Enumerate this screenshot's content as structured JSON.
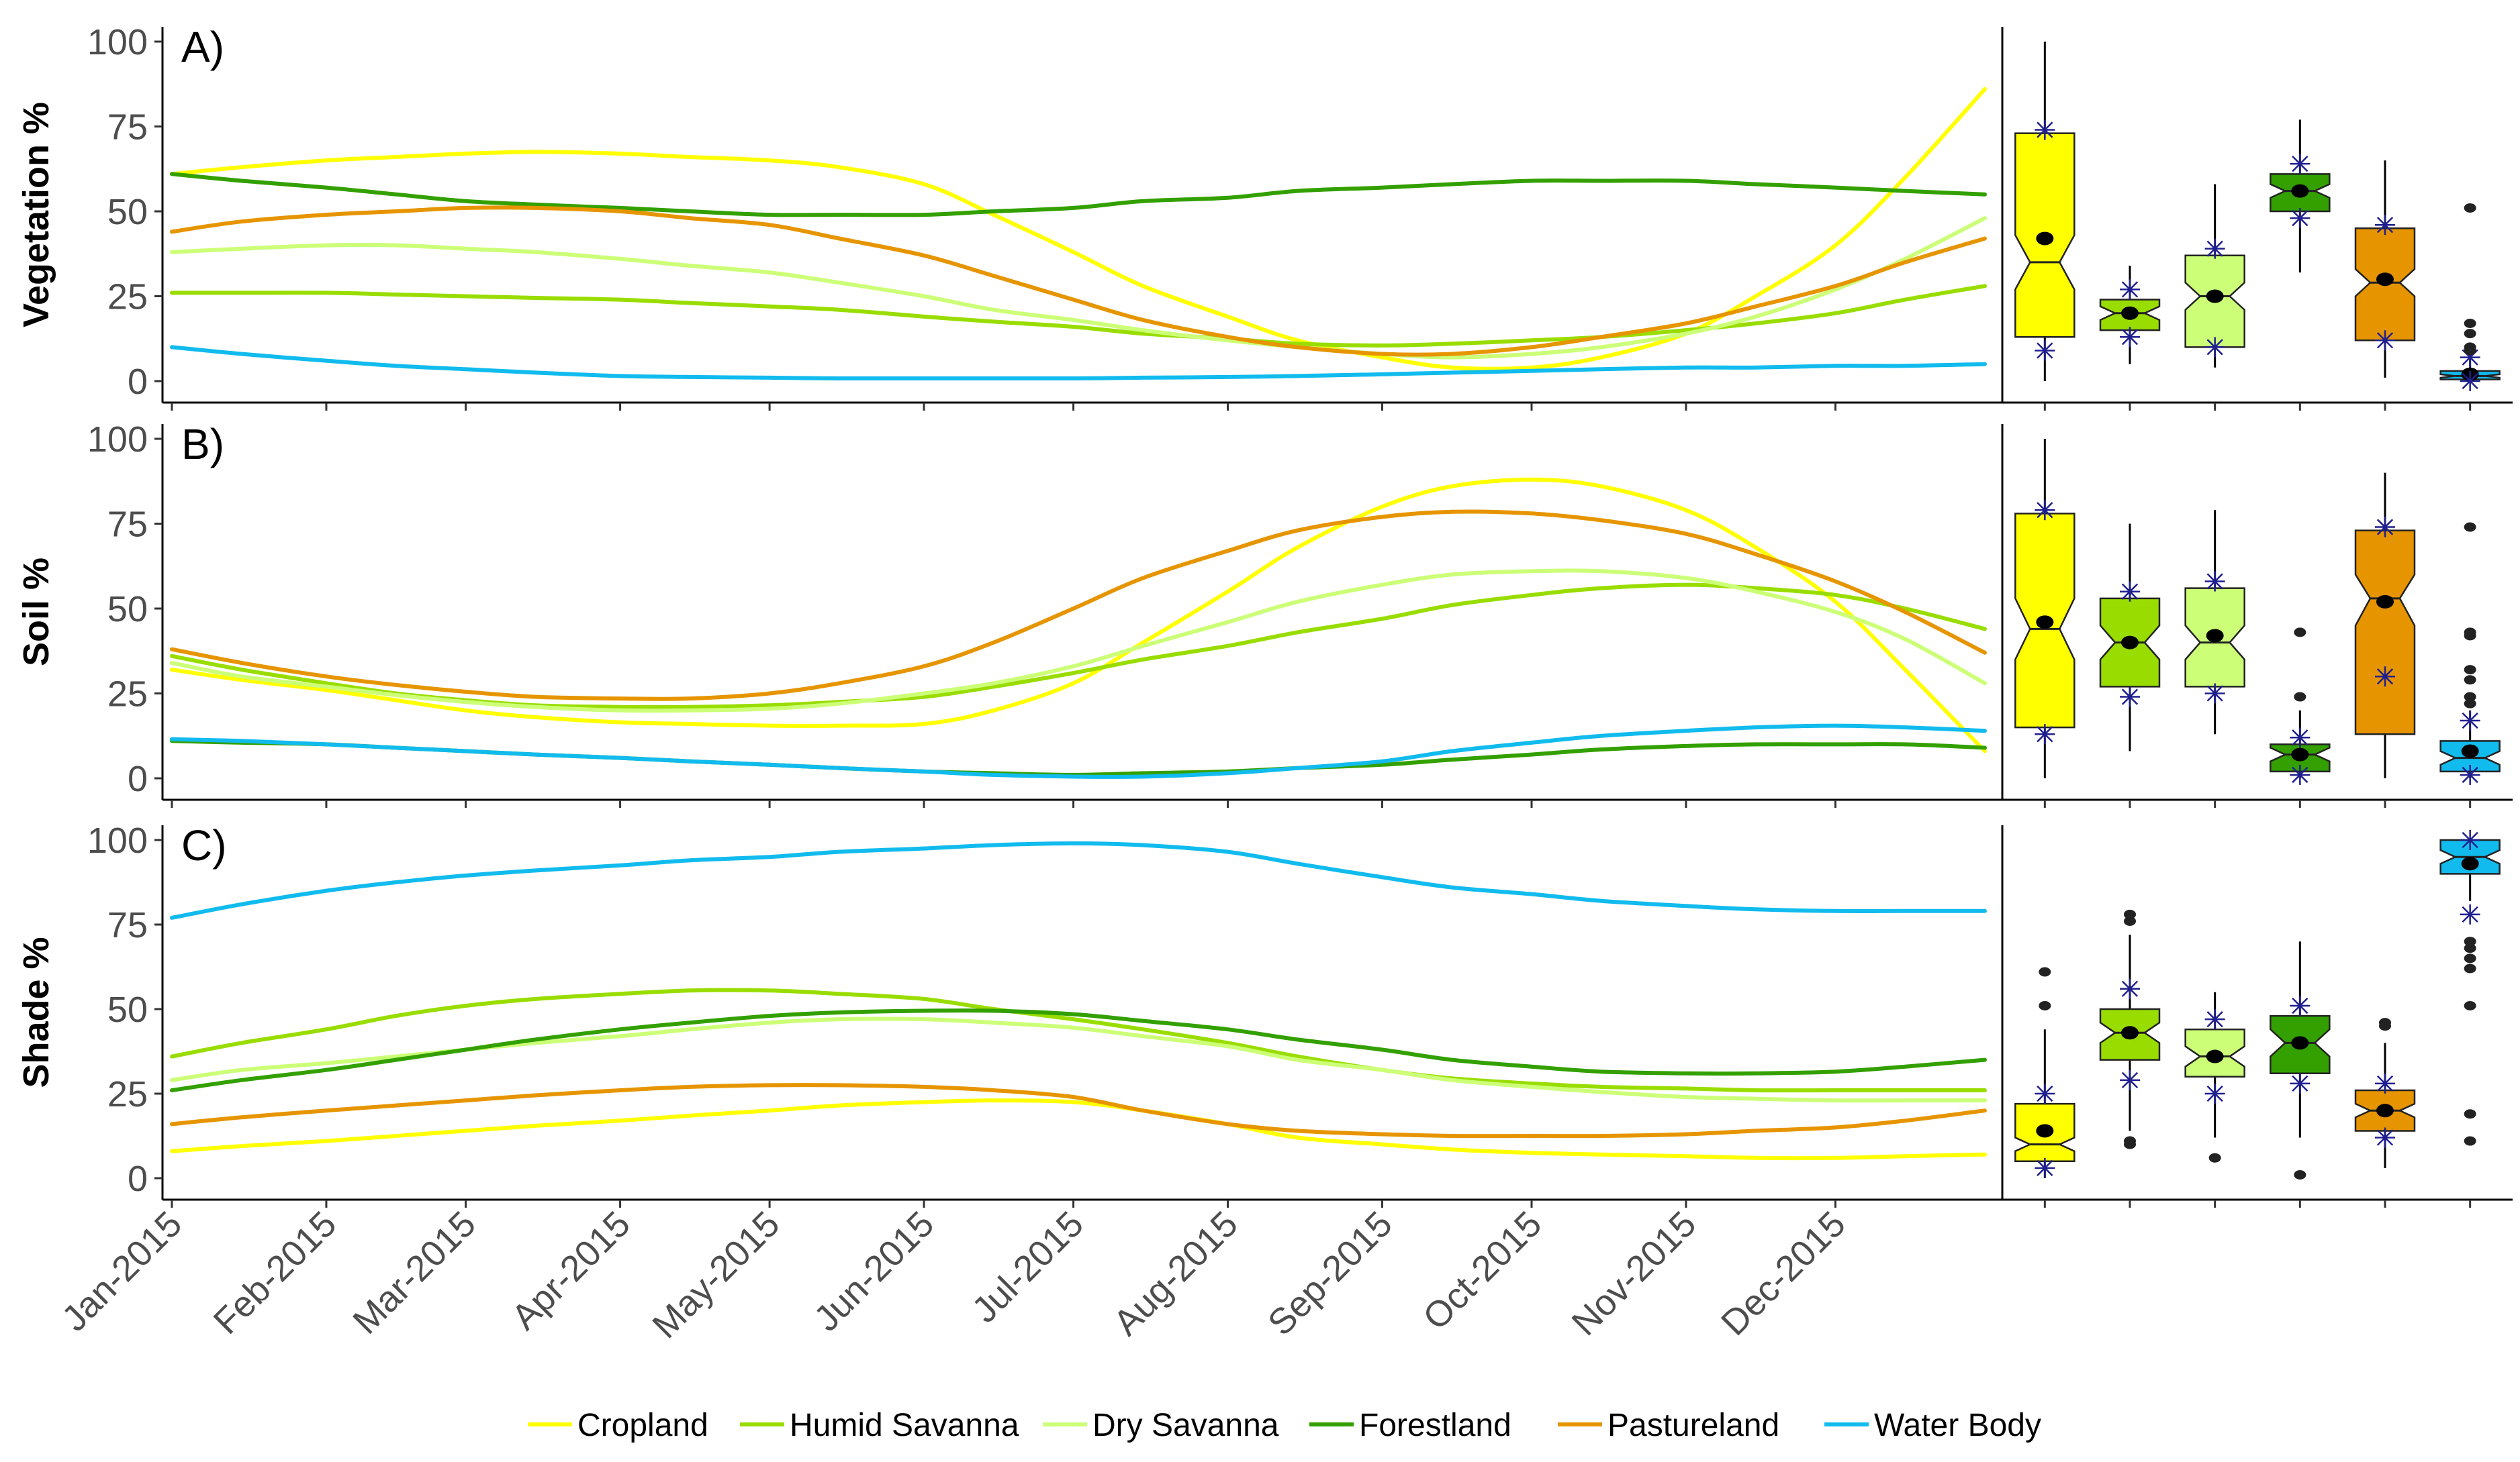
{
  "chart_data": {
    "type": "line",
    "legend": {
      "position": "bottom",
      "entries": [
        "Cropland",
        "Humid Savanna",
        "Dry Savanna",
        "Forestland",
        "Pastureland",
        "Water Body"
      ]
    },
    "colors": {
      "Cropland": "#ffff00",
      "Humid Savanna": "#99dd00",
      "Dry Savanna": "#ccff77",
      "Forestland": "#33a000",
      "Pastureland": "#e69500",
      "Water Body": "#11bbee"
    },
    "x": [
      "2015-01-01",
      "2015-01-15",
      "2015-02-01",
      "2015-02-15",
      "2015-03-01",
      "2015-03-15",
      "2015-04-01",
      "2015-04-15",
      "2015-05-01",
      "2015-05-15",
      "2015-06-01",
      "2015-06-15",
      "2015-07-01",
      "2015-07-15",
      "2015-08-01",
      "2015-08-15",
      "2015-09-01",
      "2015-09-15",
      "2015-10-01",
      "2015-10-15",
      "2015-11-01",
      "2015-11-15",
      "2015-12-01",
      "2015-12-15",
      "2015-12-31"
    ],
    "xlim": [
      "2015-01-01",
      "2015-12-31"
    ],
    "x_tick_labels": [
      "Jan-2015",
      "Feb-2015",
      "Mar-2015",
      "Apr-2015",
      "May-2015",
      "Jun-2015",
      "Jul-2015",
      "Aug-2015",
      "Sep-2015",
      "Oct-2015",
      "Nov-2015",
      "Dec-2015"
    ],
    "ylim": [
      0,
      100
    ],
    "y_ticks": [
      0,
      25,
      50,
      75,
      100
    ],
    "box_whisker_marker": "asterisk",
    "panels": [
      {
        "tag": "A)",
        "ylabel": "Vegetation %",
        "series": [
          {
            "name": "Cropland",
            "values": [
              61,
              63,
              65,
              66,
              67,
              67.5,
              67,
              66,
              65,
              63,
              58,
              49,
              38,
              28,
              19,
              12,
              7,
              4,
              4,
              7,
              14,
              25,
              40,
              60,
              86
            ]
          },
          {
            "name": "Humid Savanna",
            "values": [
              26,
              26,
              26,
              25.5,
              25,
              24.5,
              24,
              23,
              22,
              21,
              19,
              17.5,
              16,
              14,
              12.5,
              11,
              10.5,
              11,
              12,
              13,
              15,
              17,
              20,
              24,
              28
            ]
          },
          {
            "name": "Dry Savanna",
            "values": [
              38,
              39,
              40,
              40,
              39,
              38,
              36,
              34,
              32,
              29,
              25,
              21,
              18,
              15,
              12,
              10,
              8,
              7,
              8,
              10,
              14,
              19,
              27,
              36,
              48
            ]
          },
          {
            "name": "Forestland",
            "values": [
              61,
              59,
              57,
              55,
              53,
              52,
              51,
              50,
              49,
              49,
              49,
              50,
              51,
              53,
              54,
              56,
              57,
              58,
              59,
              59,
              59,
              58,
              57,
              56,
              55
            ]
          },
          {
            "name": "Pastureland",
            "values": [
              44,
              47,
              49,
              50,
              51,
              51,
              50,
              48,
              46,
              42,
              37,
              31,
              24,
              18,
              13,
              10,
              8,
              8,
              10,
              13,
              17,
              22,
              28,
              35,
              42
            ]
          },
          {
            "name": "Water Body",
            "values": [
              10,
              8,
              6,
              4.5,
              3.5,
              2.5,
              1.5,
              1.2,
              1,
              0.8,
              0.8,
              0.8,
              0.8,
              1,
              1.2,
              1.5,
              2,
              2.5,
              3,
              3.5,
              4,
              4,
              4.5,
              4.5,
              5
            ]
          }
        ],
        "boxes": [
          {
            "name": "Cropland",
            "q1": 13,
            "median": 35,
            "q3": 73,
            "lower_whisker": 0,
            "upper_whisker": 100,
            "mean": 42,
            "sd_low": 9,
            "sd_high": 74,
            "notch": [
              27,
              43
            ],
            "outliers": []
          },
          {
            "name": "Humid Savanna",
            "q1": 15,
            "median": 20,
            "q3": 24,
            "lower_whisker": 5,
            "upper_whisker": 34,
            "mean": 20,
            "sd_low": 13,
            "sd_high": 27,
            "notch": [
              18,
              22
            ],
            "outliers": []
          },
          {
            "name": "Dry Savanna",
            "q1": 10,
            "median": 25,
            "q3": 37,
            "lower_whisker": 4,
            "upper_whisker": 58,
            "mean": 25,
            "sd_low": 10,
            "sd_high": 39,
            "notch": [
              21,
              29
            ],
            "outliers": []
          },
          {
            "name": "Forestland",
            "q1": 50,
            "median": 56,
            "q3": 61,
            "lower_whisker": 32,
            "upper_whisker": 77,
            "mean": 56,
            "sd_low": 48,
            "sd_high": 64,
            "notch": [
              54,
              58
            ],
            "outliers": []
          },
          {
            "name": "Pastureland",
            "q1": 12,
            "median": 29,
            "q3": 45,
            "lower_whisker": 1,
            "upper_whisker": 65,
            "mean": 30,
            "sd_low": 12,
            "sd_high": 46,
            "notch": [
              25,
              33
            ],
            "outliers": []
          },
          {
            "name": "Water Body",
            "q1": 0.5,
            "median": 1.5,
            "q3": 3,
            "lower_whisker": 0,
            "upper_whisker": 7,
            "mean": 2,
            "sd_low": 0,
            "sd_high": 7,
            "notch": [
              1,
              2
            ],
            "outliers": [
              9,
              10,
              14,
              17,
              51
            ]
          }
        ]
      },
      {
        "tag": "B)",
        "ylabel": "Soil %",
        "series": [
          {
            "name": "Cropland",
            "values": [
              32,
              29,
              26,
              23,
              20,
              18,
              16.5,
              16,
              15.5,
              15.5,
              16,
              20,
              28,
              40,
              55,
              68,
              80,
              86,
              88,
              86,
              79,
              68,
              52,
              32,
              8
            ]
          },
          {
            "name": "Humid Savanna",
            "values": [
              36,
              32,
              28,
              25,
              23,
              21.5,
              21,
              21,
              21.5,
              22.5,
              24,
              27,
              31,
              35,
              39,
              43,
              47,
              51,
              54,
              56,
              57,
              56,
              54,
              50,
              44
            ]
          },
          {
            "name": "Dry Savanna",
            "values": [
              34,
              30,
              27,
              24.5,
              22.5,
              21,
              20,
              20,
              20.5,
              22,
              25,
              28,
              33,
              39,
              46,
              52,
              57,
              60,
              61,
              61,
              59,
              55,
              49,
              41,
              28
            ]
          },
          {
            "name": "Forestland",
            "values": [
              11,
              10.5,
              10,
              9,
              8,
              7,
              6,
              5,
              4,
              3,
              2,
              1.5,
              1,
              1.5,
              2,
              3,
              4,
              5.5,
              7,
              8.5,
              9.5,
              10,
              10,
              10,
              9
            ]
          },
          {
            "name": "Pastureland",
            "values": [
              38,
              34,
              30,
              27.5,
              25.5,
              24,
              23.5,
              23.5,
              25,
              28,
              33,
              40,
              50,
              59,
              67,
              73,
              77,
              78.5,
              78,
              76,
              72,
              66,
              58,
              49,
              37
            ]
          },
          {
            "name": "Water Body",
            "values": [
              11.5,
              11,
              10,
              9,
              8,
              7,
              6,
              5,
              4,
              3,
              2,
              1,
              0.5,
              0.5,
              1.5,
              3,
              5,
              8,
              10.5,
              12.5,
              14,
              15,
              15.5,
              15,
              14
            ]
          }
        ],
        "boxes": [
          {
            "name": "Cropland",
            "q1": 15,
            "median": 44,
            "q3": 78,
            "lower_whisker": 0,
            "upper_whisker": 100,
            "mean": 46,
            "sd_low": 13,
            "sd_high": 79,
            "notch": [
              35,
              53
            ],
            "outliers": []
          },
          {
            "name": "Humid Savanna",
            "q1": 27,
            "median": 40,
            "q3": 53,
            "lower_whisker": 8,
            "upper_whisker": 75,
            "mean": 40,
            "sd_low": 24,
            "sd_high": 55,
            "notch": [
              35,
              45
            ],
            "outliers": []
          },
          {
            "name": "Dry Savanna",
            "q1": 27,
            "median": 40,
            "q3": 56,
            "lower_whisker": 13,
            "upper_whisker": 79,
            "mean": 42,
            "sd_low": 25,
            "sd_high": 58,
            "notch": [
              35,
              45
            ],
            "outliers": []
          },
          {
            "name": "Forestland",
            "q1": 2,
            "median": 7,
            "q3": 10,
            "lower_whisker": 0,
            "upper_whisker": 20,
            "mean": 7,
            "sd_low": 1,
            "sd_high": 12,
            "notch": [
              5,
              9
            ],
            "outliers": [
              24,
              43
            ]
          },
          {
            "name": "Pastureland",
            "q1": 13,
            "median": 53,
            "q3": 73,
            "lower_whisker": 0,
            "upper_whisker": 90,
            "mean": 52,
            "sd_low": 30,
            "sd_high": 74,
            "notch": [
              45,
              60
            ],
            "outliers": []
          },
          {
            "name": "Water Body",
            "q1": 2,
            "median": 6,
            "q3": 11,
            "lower_whisker": 0,
            "upper_whisker": 20,
            "mean": 8,
            "sd_low": 1,
            "sd_high": 17,
            "notch": [
              4,
              8
            ],
            "outliers": [
              22,
              24,
              29,
              32,
              42,
              43,
              74
            ]
          }
        ]
      },
      {
        "tag": "C)",
        "ylabel": "Shade %",
        "series": [
          {
            "name": "Cropland",
            "values": [
              8,
              9.5,
              11,
              12.5,
              14,
              15.5,
              17,
              18.5,
              20,
              21.5,
              22.5,
              23,
              22.5,
              20,
              16,
              12,
              10,
              8.5,
              7.5,
              7,
              6.5,
              6,
              6,
              6.5,
              7
            ]
          },
          {
            "name": "Humid Savanna",
            "values": [
              36,
              40,
              44,
              48,
              51,
              53,
              54.5,
              55.5,
              55.5,
              54.5,
              53,
              50,
              47,
              44,
              40,
              36,
              32,
              29.5,
              28,
              27,
              26.5,
              26,
              26,
              26,
              26
            ]
          },
          {
            "name": "Dry Savanna",
            "values": [
              29,
              32,
              34,
              36,
              38,
              40,
              42,
              44,
              46,
              47,
              47,
              46,
              44.5,
              42,
              39,
              35,
              32,
              29,
              27,
              25.5,
              24,
              23.5,
              23,
              23,
              23
            ]
          },
          {
            "name": "Forestland",
            "values": [
              26,
              29,
              32,
              35,
              38,
              41,
              44,
              46,
              48,
              49,
              49.5,
              49.5,
              48.5,
              46.5,
              44,
              41,
              38,
              35,
              33,
              31.5,
              31,
              31,
              31.5,
              33,
              35
            ]
          },
          {
            "name": "Pastureland",
            "values": [
              16,
              18,
              20,
              21.5,
              23,
              24.5,
              26,
              27,
              27.5,
              27.5,
              27,
              26,
              24,
              20,
              16,
              14,
              13,
              12.5,
              12.5,
              12.5,
              13,
              14,
              15,
              17,
              20
            ]
          },
          {
            "name": "Water Body",
            "values": [
              77,
              81,
              85,
              87.5,
              89.5,
              91,
              92.5,
              94,
              95,
              96.5,
              97.5,
              98.5,
              99,
              98.5,
              96.5,
              93,
              89,
              86,
              84,
              82,
              80.5,
              79.5,
              79,
              79,
              79
            ]
          }
        ],
        "boxes": [
          {
            "name": "Cropland",
            "q1": 5,
            "median": 10,
            "q3": 22,
            "lower_whisker": 0,
            "upper_whisker": 44,
            "mean": 14,
            "sd_low": 3,
            "sd_high": 25,
            "notch": [
              8,
              12
            ],
            "outliers": [
              51,
              61
            ]
          },
          {
            "name": "Humid Savanna",
            "q1": 35,
            "median": 43,
            "q3": 50,
            "lower_whisker": 14,
            "upper_whisker": 72,
            "mean": 43,
            "sd_low": 29,
            "sd_high": 56,
            "notch": [
              40,
              46
            ],
            "outliers": [
              10,
              11,
              76,
              78
            ]
          },
          {
            "name": "Dry Savanna",
            "q1": 30,
            "median": 36,
            "q3": 44,
            "lower_whisker": 12,
            "upper_whisker": 55,
            "mean": 36,
            "sd_low": 25,
            "sd_high": 47,
            "notch": [
              33,
              39
            ],
            "outliers": [
              6
            ]
          },
          {
            "name": "Forestland",
            "q1": 31,
            "median": 40,
            "q3": 48,
            "lower_whisker": 12,
            "upper_whisker": 70,
            "mean": 40,
            "sd_low": 28,
            "sd_high": 51,
            "notch": [
              36,
              44
            ],
            "outliers": [
              1
            ]
          },
          {
            "name": "Pastureland",
            "q1": 14,
            "median": 20,
            "q3": 26,
            "lower_whisker": 3,
            "upper_whisker": 40,
            "mean": 20,
            "sd_low": 12,
            "sd_high": 28,
            "notch": [
              18,
              22
            ],
            "outliers": [
              45,
              46
            ]
          },
          {
            "name": "Water Body",
            "q1": 90,
            "median": 95,
            "q3": 100,
            "lower_whisker": 82,
            "upper_whisker": 100,
            "mean": 93,
            "sd_low": 78,
            "sd_high": 100,
            "notch": [
              93,
              97
            ],
            "outliers": [
              11,
              19,
              51,
              62,
              65,
              68,
              70
            ]
          }
        ]
      }
    ]
  }
}
